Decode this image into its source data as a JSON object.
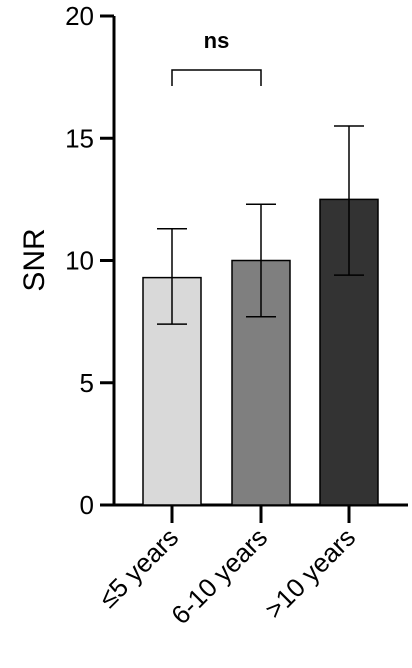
{
  "chart_data": {
    "type": "bar",
    "categories": [
      "≤5 years",
      "6-10 years",
      ">10 years"
    ],
    "values": [
      9.3,
      10.0,
      12.5
    ],
    "error_upper": [
      11.3,
      12.3,
      15.5
    ],
    "error_lower": [
      7.4,
      7.7,
      9.4
    ],
    "bar_colors": [
      "#d9d9d9",
      "#7f7f7f",
      "#333333"
    ],
    "ylabel": "SNR",
    "ylim": [
      0,
      20
    ],
    "yticks": [
      0,
      5,
      10,
      15,
      20
    ],
    "significance": {
      "label": "ns",
      "from": 0,
      "to": 1
    },
    "grid": false
  }
}
